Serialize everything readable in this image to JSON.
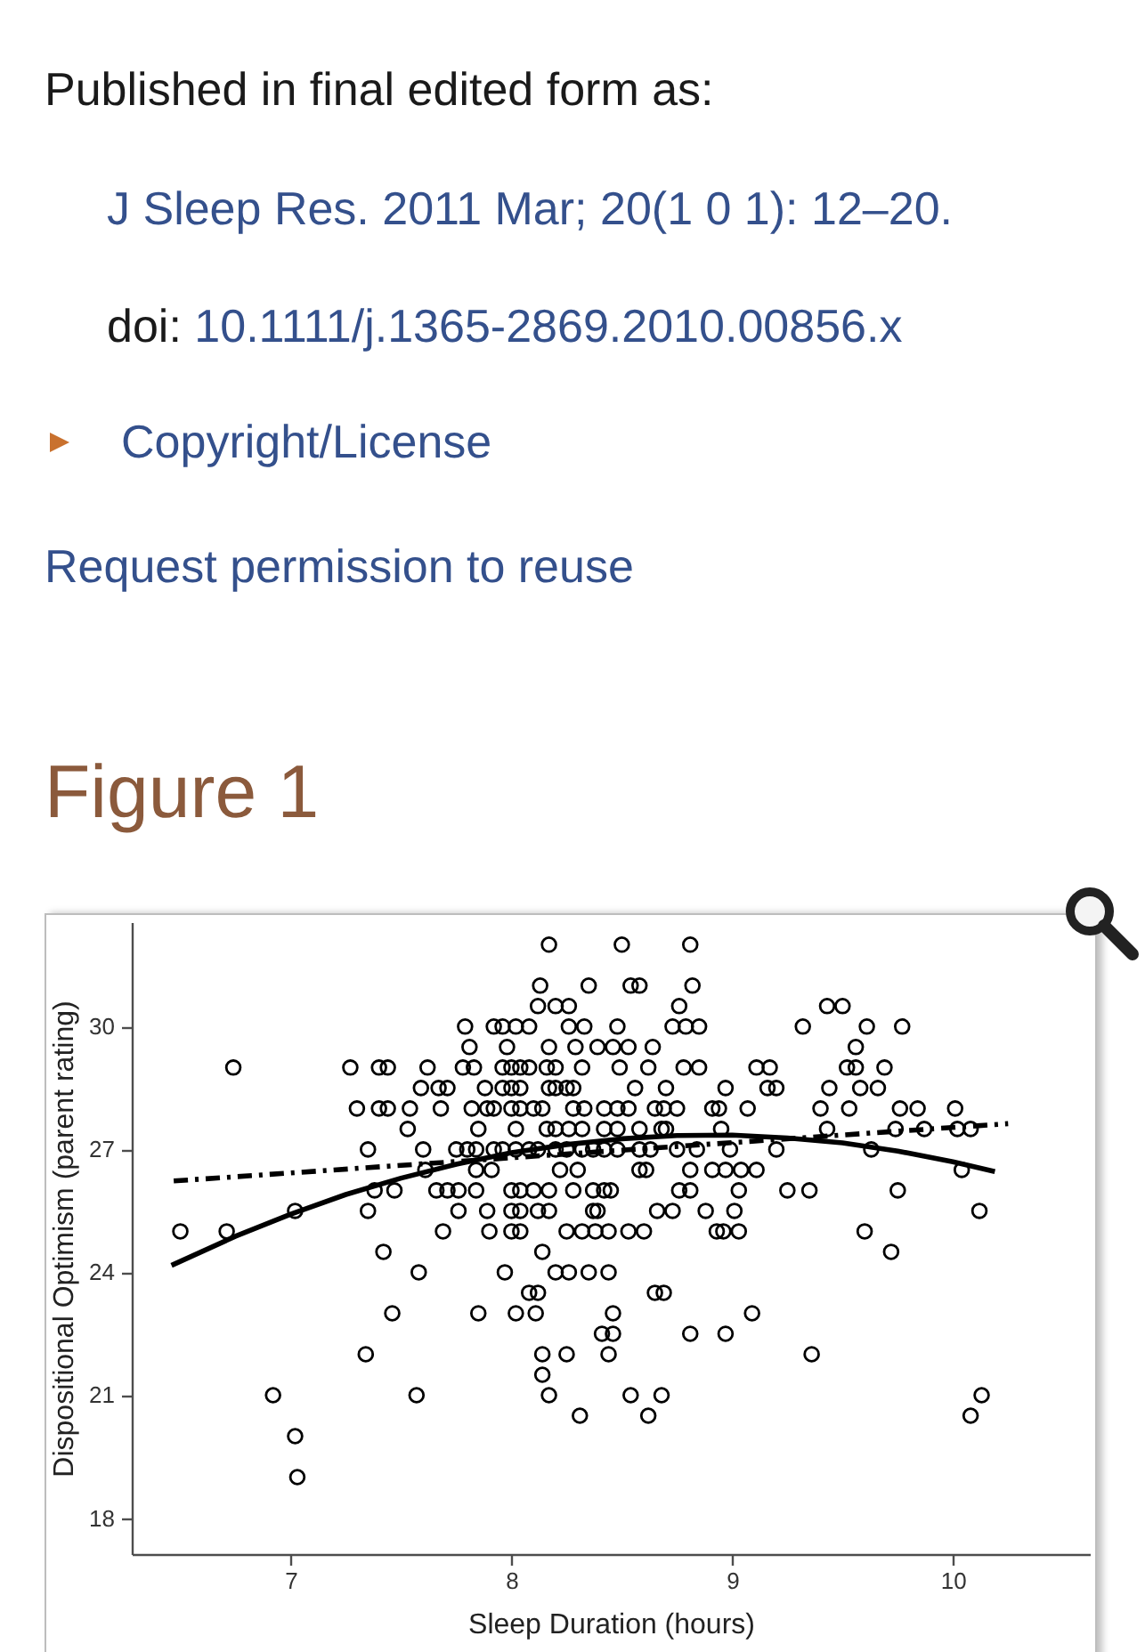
{
  "chart_data": {
    "type": "scatter",
    "title": "Figure 1",
    "annotations": [
      "Published in final edited form as:",
      "J Sleep Res. 2011 Mar; 20(1 0 1): 12–20.",
      "doi: 10.1111/j.1365-2869.2010.00856.x",
      "Copyright/License",
      "Request permission to reuse"
    ],
    "xlabel": "Sleep Duration (hours)",
    "ylabel": "Dispositional Optimism (parent rating)",
    "xlim": [
      6.28,
      10.62
    ],
    "ylim": [
      17.12,
      32.55
    ],
    "xticks": [
      7,
      8,
      9,
      10
    ],
    "yticks": [
      18,
      21,
      24,
      27,
      30
    ],
    "series": [
      {
        "type": "scatter",
        "marker": "circle",
        "color": "#000000",
        "x": [
          8.17,
          8.5,
          8.81,
          8.13,
          8.35,
          8.54,
          8.58,
          8.82,
          8.12,
          8.2,
          8.26,
          8.76,
          9.43,
          9.5,
          7.79,
          7.92,
          7.96,
          8.02,
          8.08,
          8.26,
          8.33,
          8.48,
          8.73,
          8.79,
          8.85,
          9.32,
          9.61,
          9.77,
          7.81,
          7.98,
          8.17,
          8.29,
          8.39,
          8.46,
          8.53,
          8.64,
          9.56,
          6.74,
          7.27,
          7.4,
          7.44,
          7.62,
          7.78,
          7.83,
          7.96,
          8.0,
          8.04,
          8.08,
          8.16,
          8.2,
          8.32,
          8.49,
          8.62,
          8.78,
          8.85,
          9.11,
          9.17,
          9.52,
          9.56,
          9.69,
          7.59,
          7.67,
          7.71,
          7.88,
          7.96,
          8.0,
          8.04,
          8.17,
          8.2,
          8.25,
          8.28,
          8.56,
          8.7,
          8.97,
          9.16,
          9.2,
          9.44,
          9.58,
          9.66,
          7.3,
          7.4,
          7.44,
          7.54,
          7.68,
          7.82,
          7.89,
          7.92,
          8.0,
          8.04,
          8.1,
          8.14,
          8.28,
          8.33,
          8.42,
          8.48,
          8.53,
          8.65,
          8.69,
          8.75,
          8.91,
          8.94,
          9.07,
          9.4,
          9.53,
          9.76,
          9.84,
          10.01,
          7.53,
          7.85,
          8.02,
          8.16,
          8.2,
          8.26,
          8.32,
          8.42,
          8.48,
          8.58,
          8.68,
          8.7,
          8.95,
          9.43,
          9.74,
          9.87,
          10.02,
          10.08,
          7.35,
          7.6,
          7.75,
          7.8,
          7.84,
          7.92,
          7.96,
          8.02,
          8.08,
          8.12,
          8.2,
          8.25,
          8.32,
          8.37,
          8.42,
          8.48,
          8.58,
          8.63,
          8.75,
          8.84,
          8.99,
          9.2,
          9.63,
          7.61,
          7.84,
          7.91,
          8.22,
          8.3,
          8.58,
          8.61,
          8.81,
          8.91,
          8.97,
          9.04,
          9.11,
          10.04,
          7.38,
          7.47,
          7.66,
          7.71,
          7.76,
          7.84,
          8.0,
          8.04,
          8.1,
          8.17,
          8.28,
          8.37,
          8.42,
          8.45,
          8.76,
          8.81,
          9.03,
          9.25,
          9.35,
          9.75,
          7.02,
          7.35,
          7.76,
          7.89,
          8.0,
          8.04,
          8.12,
          8.17,
          8.37,
          8.39,
          8.66,
          8.73,
          8.88,
          9.01,
          10.12,
          6.5,
          6.71,
          7.69,
          7.9,
          8.0,
          8.04,
          8.25,
          8.32,
          8.38,
          8.44,
          8.53,
          8.6,
          8.93,
          8.96,
          9.03,
          9.6,
          7.42,
          8.14,
          9.72,
          7.58,
          7.97,
          8.2,
          8.26,
          8.35,
          8.44,
          8.08,
          8.12,
          8.65,
          8.69,
          7.46,
          7.85,
          8.02,
          8.11,
          8.46,
          9.09,
          8.41,
          8.46,
          8.81,
          8.97,
          7.34,
          8.14,
          8.25,
          8.44,
          9.36,
          8.14,
          6.92,
          7.57,
          8.17,
          8.54,
          8.68,
          10.13,
          8.31,
          8.62,
          10.08,
          7.02,
          7.03
        ],
        "values": [
          32,
          32,
          32,
          31,
          31,
          31,
          31,
          31,
          30.5,
          30.5,
          30.5,
          30.5,
          30.5,
          30.5,
          30,
          30,
          30,
          30,
          30,
          30,
          30,
          30,
          30,
          30,
          30,
          30,
          30,
          30,
          29.5,
          29.5,
          29.5,
          29.5,
          29.5,
          29.5,
          29.5,
          29.5,
          29.5,
          29,
          29,
          29,
          29,
          29,
          29,
          29,
          29,
          29,
          29,
          29,
          29,
          29,
          29,
          29,
          29,
          29,
          29,
          29,
          29,
          29,
          29,
          29,
          28.5,
          28.5,
          28.5,
          28.5,
          28.5,
          28.5,
          28.5,
          28.5,
          28.5,
          28.5,
          28.5,
          28.5,
          28.5,
          28.5,
          28.5,
          28.5,
          28.5,
          28.5,
          28.5,
          28,
          28,
          28,
          28,
          28,
          28,
          28,
          28,
          28,
          28,
          28,
          28,
          28,
          28,
          28,
          28,
          28,
          28,
          28,
          28,
          28,
          28,
          28,
          28,
          28,
          28,
          28,
          28,
          27.5,
          27.5,
          27.5,
          27.5,
          27.5,
          27.5,
          27.5,
          27.5,
          27.5,
          27.5,
          27.5,
          27.5,
          27.5,
          27.5,
          27.5,
          27.5,
          27.5,
          27.5,
          27,
          27,
          27,
          27,
          27,
          27,
          27,
          27,
          27,
          27,
          27,
          27,
          27,
          27,
          27,
          27,
          27,
          27,
          27,
          27,
          27,
          27,
          27,
          26.5,
          26.5,
          26.5,
          26.5,
          26.5,
          26.5,
          26.5,
          26.5,
          26.5,
          26.5,
          26.5,
          26.5,
          26.5,
          26,
          26,
          26,
          26,
          26,
          26,
          26,
          26,
          26,
          26,
          26,
          26,
          26,
          26,
          26,
          26,
          26,
          26,
          26,
          26,
          25.5,
          25.5,
          25.5,
          25.5,
          25.5,
          25.5,
          25.5,
          25.5,
          25.5,
          25.5,
          25.5,
          25.5,
          25.5,
          25.5,
          25.5,
          25,
          25,
          25,
          25,
          25,
          25,
          25,
          25,
          25,
          25,
          25,
          25,
          25,
          25,
          25,
          25,
          24.5,
          24.5,
          24.5,
          24,
          24,
          24,
          24,
          24,
          24,
          23.5,
          23.5,
          23.5,
          23.5,
          23,
          23,
          23,
          23,
          23,
          23,
          22.5,
          22.5,
          22.5,
          22.5,
          22,
          22,
          22,
          22,
          22,
          21.5,
          21,
          21,
          21,
          21,
          21,
          21,
          20.5,
          20.5,
          20.5,
          20,
          19
        ]
      },
      {
        "type": "line",
        "line_style": "solid",
        "color": "#000000",
        "x": [
          6.46,
          6.75,
          7,
          7.25,
          7.5,
          7.75,
          8,
          8.25,
          8.5,
          8.75,
          9,
          9.25,
          9.5,
          9.75,
          10,
          10.19
        ],
        "values": [
          24.17,
          24.88,
          25.42,
          25.9,
          26.3,
          26.64,
          26.92,
          27.12,
          27.26,
          27.34,
          27.35,
          27.28,
          27.16,
          26.96,
          26.7,
          26.46
        ]
      },
      {
        "type": "line",
        "line_style": "dashed",
        "color": "#000000",
        "x": [
          6.47,
          10.25
        ],
        "values": [
          26.23,
          27.63
        ]
      }
    ]
  }
}
